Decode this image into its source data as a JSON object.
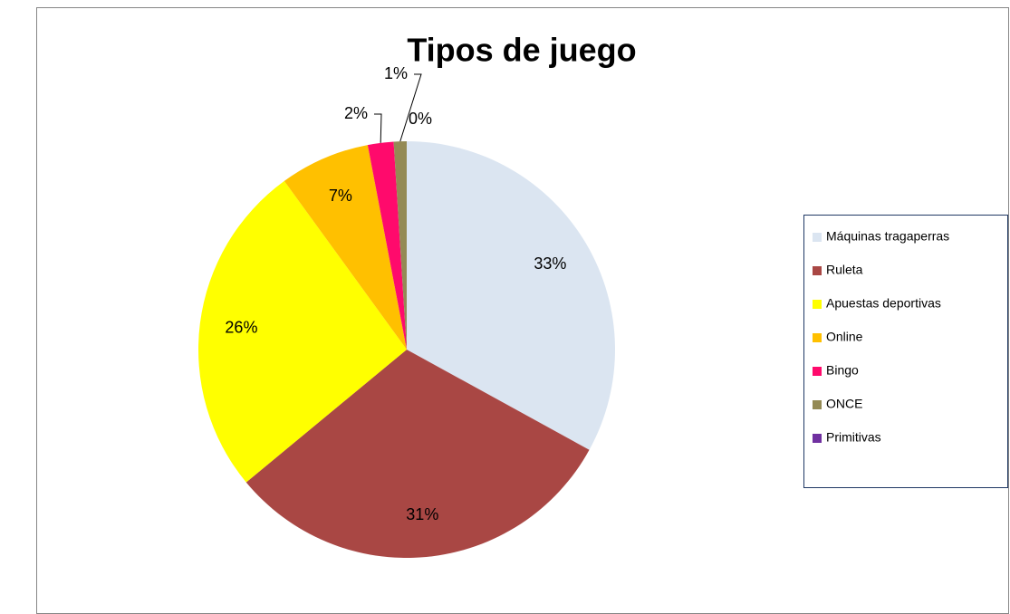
{
  "chart_data": {
    "type": "pie",
    "title": "Tipos de juego",
    "categories": [
      "Máquinas tragaperras",
      "Ruleta",
      "Apuestas deportivas",
      "Online",
      "Bingo",
      "ONCE",
      "Primitivas"
    ],
    "values": [
      33,
      31,
      26,
      7,
      2,
      1,
      0
    ],
    "value_labels": [
      "33%",
      "31%",
      "26%",
      "7%",
      "2%",
      "1%",
      "0%"
    ],
    "colors": [
      "#dbe5f1",
      "#a94744",
      "#ffff00",
      "#ffc000",
      "#ff0a6c",
      "#948a54",
      "#7030a0"
    ],
    "legend": "right"
  }
}
